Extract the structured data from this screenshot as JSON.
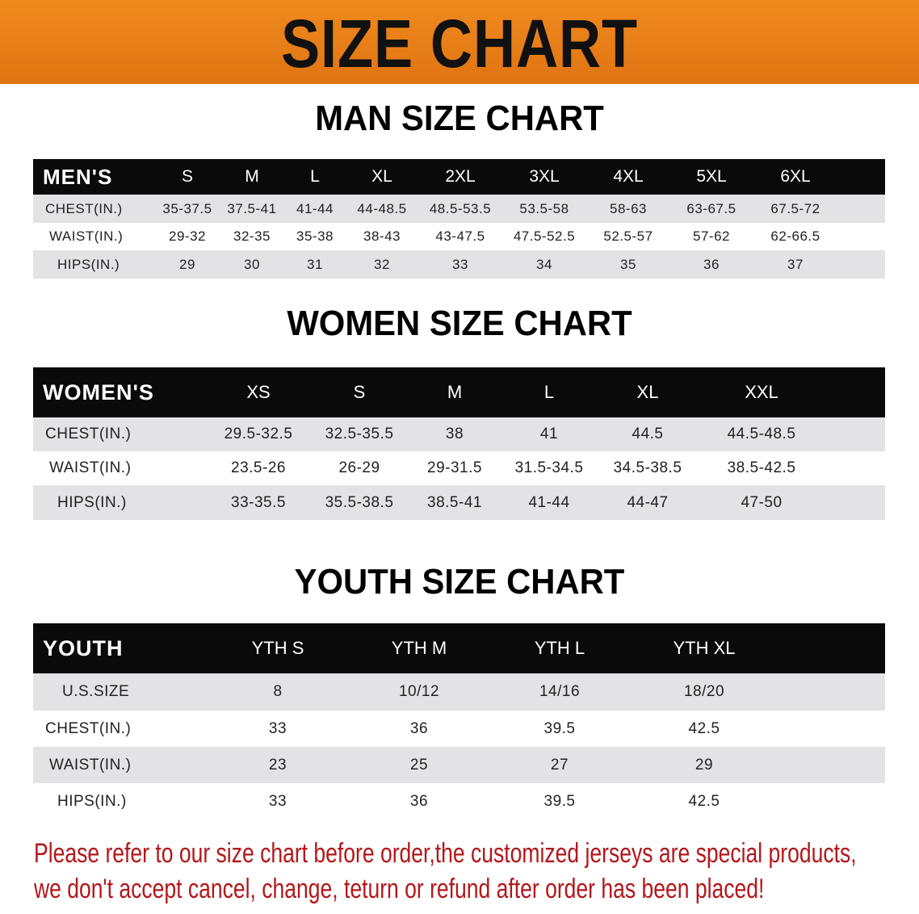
{
  "banner": {
    "title": "SIZE CHART",
    "color": "#e97f18"
  },
  "men": {
    "heading": "MAN SIZE CHART",
    "header": [
      "MEN'S",
      "S",
      "M",
      "L",
      "XL",
      "2XL",
      "3XL",
      "4XL",
      "5XL",
      "6XL"
    ],
    "rows": [
      [
        "CHEST(IN.)",
        "35-37.5",
        "37.5-41",
        "41-44",
        "44-48.5",
        "48.5-53.5",
        "53.5-58",
        "58-63",
        "63-67.5",
        "67.5-72"
      ],
      [
        "WAIST(IN.)",
        "29-32",
        "32-35",
        "35-38",
        "38-43",
        "43-47.5",
        "47.5-52.5",
        "52.5-57",
        "57-62",
        "62-66.5"
      ],
      [
        "HIPS(IN.)",
        "29",
        "30",
        "31",
        "32",
        "33",
        "34",
        "35",
        "36",
        "37"
      ]
    ]
  },
  "women": {
    "heading": "WOMEN SIZE CHART",
    "header": [
      "WOMEN'S",
      "XS",
      "S",
      "M",
      "L",
      "XL",
      "XXL"
    ],
    "rows": [
      [
        "CHEST(IN.)",
        "29.5-32.5",
        "32.5-35.5",
        "38",
        "41",
        "44.5",
        "44.5-48.5"
      ],
      [
        "WAIST(IN.)",
        "23.5-26",
        "26-29",
        "29-31.5",
        "31.5-34.5",
        "34.5-38.5",
        "38.5-42.5"
      ],
      [
        "HIPS(IN.)",
        "33-35.5",
        "35.5-38.5",
        "38.5-41",
        "41-44",
        "44-47",
        "47-50"
      ]
    ]
  },
  "youth": {
    "heading": "YOUTH SIZE CHART",
    "header": [
      "YOUTH",
      "YTH S",
      "YTH M",
      "YTH L",
      "YTH XL"
    ],
    "rows": [
      [
        "U.S.SIZE",
        "8",
        "10/12",
        "14/16",
        "18/20"
      ],
      [
        "CHEST(IN.)",
        "33",
        "36",
        "39.5",
        "42.5"
      ],
      [
        "WAIST(IN.)",
        "23",
        "25",
        "27",
        "29"
      ],
      [
        "HIPS(IN.)",
        "33",
        "36",
        "39.5",
        "42.5"
      ]
    ]
  },
  "notice": {
    "line1": "Please refer to our size chart before order,the customized jerseys are special products,",
    "line2": "we don't accept cancel, change, teturn or refund after order has been placed!",
    "color": "#b3171b"
  }
}
